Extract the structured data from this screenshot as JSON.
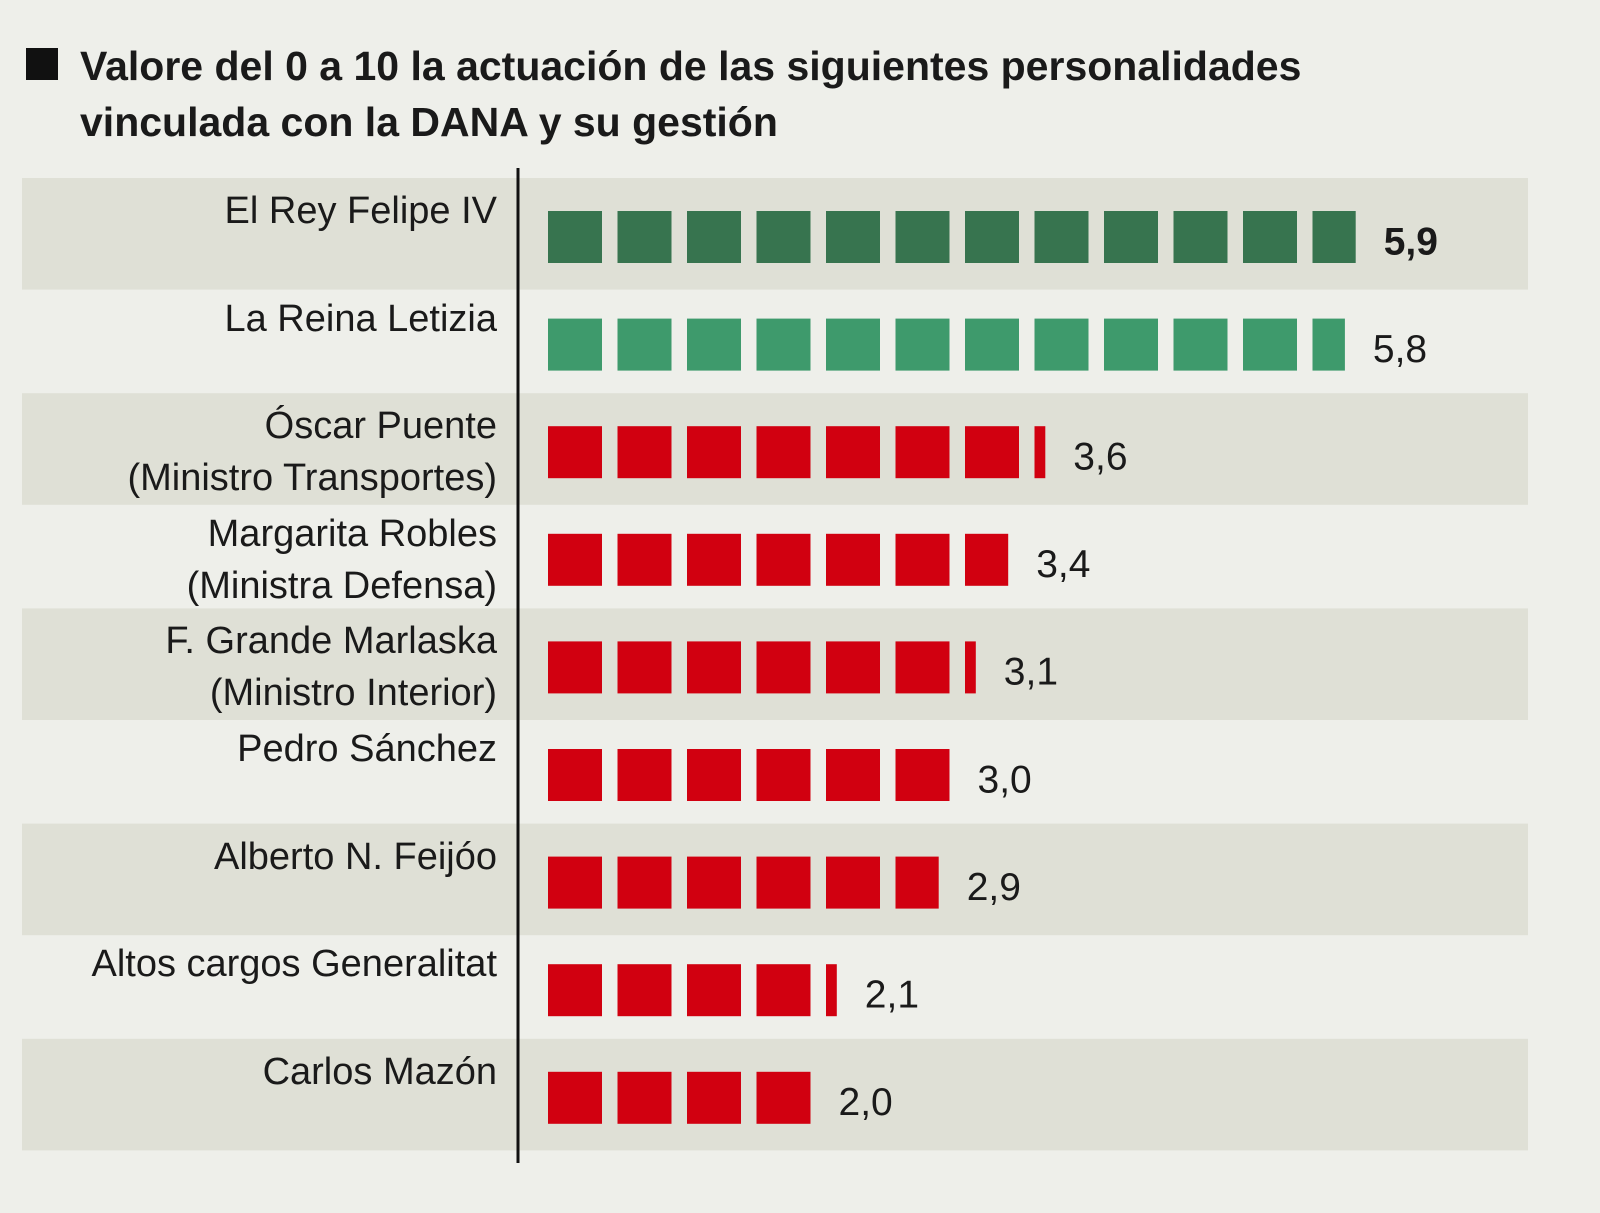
{
  "chart_data": {
    "type": "pictogram-bar",
    "title": "Valore del 0 a 10 la actuación de las siguientes personalidades\nvinculada con la DANA y su gestión",
    "categories": [
      "El Rey Felipe IV",
      "La Reina Letizia",
      "Óscar Puente\n(Ministro Transportes)",
      "Margarita Robles\n(Ministra Defensa)",
      "F. Grande Marlaska\n(Ministro Interior)",
      "Pedro Sánchez",
      "Alberto N. Feijóo",
      "Altos cargos Generalitat",
      "Carlos Mazón"
    ],
    "values": [
      5.9,
      5.8,
      3.6,
      3.4,
      3.1,
      3.0,
      2.9,
      2.1,
      2.0
    ],
    "value_labels": [
      "5,9",
      "5,8",
      "3,6",
      "3,4",
      "3,1",
      "3,0",
      "2,9",
      "2,1",
      "2,0"
    ],
    "colors": [
      "#37744f",
      "#3e9a6c",
      "#d10010",
      "#d10010",
      "#d10010",
      "#d10010",
      "#d10010",
      "#d10010",
      "#d10010"
    ]
  }
}
